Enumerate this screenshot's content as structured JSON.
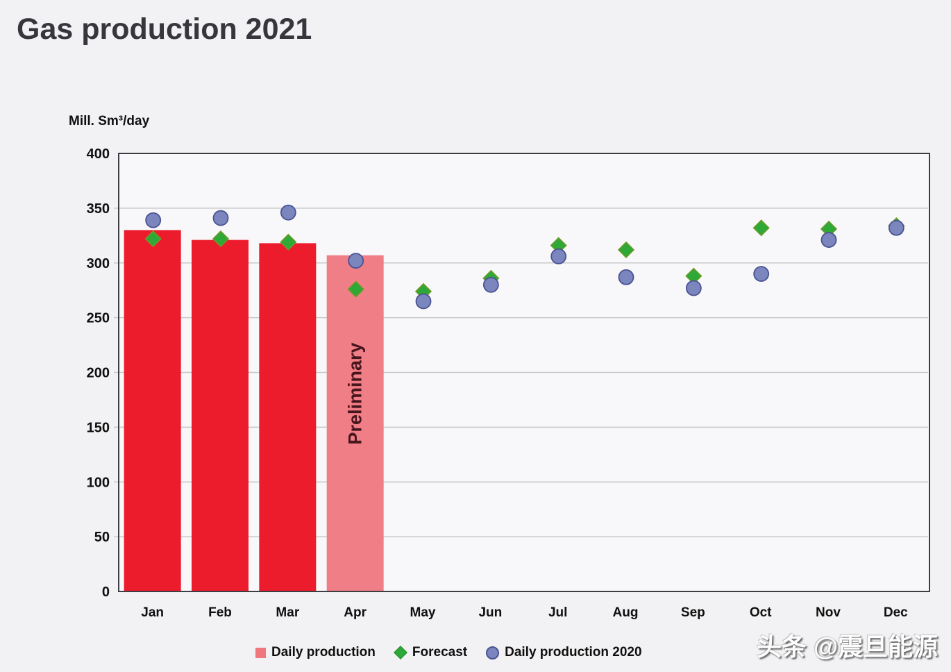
{
  "header": {
    "title": "Gas production 2021"
  },
  "watermark": "头条 @震旦能源",
  "legend": {
    "items": [
      {
        "label": "Daily production"
      },
      {
        "label": "Forecast"
      },
      {
        "label": "Daily production 2020"
      }
    ]
  },
  "chart_data": {
    "type": "bar",
    "title": "Gas production 2021",
    "xlabel": "",
    "ylabel": "Mill. Sm³/day",
    "ylim": [
      0,
      400
    ],
    "yticks": [
      0,
      50,
      100,
      150,
      200,
      250,
      300,
      350,
      400
    ],
    "grid": "horizontal",
    "legend_position": "bottom",
    "categories": [
      "Jan",
      "Feb",
      "Mar",
      "Apr",
      "May",
      "Jun",
      "Jul",
      "Aug",
      "Sep",
      "Oct",
      "Nov",
      "Dec"
    ],
    "series": [
      {
        "name": "Daily production",
        "type": "bar",
        "color": "#EC1C2D",
        "values": [
          330,
          321,
          318,
          307,
          null,
          null,
          null,
          null,
          null,
          null,
          null,
          null
        ]
      },
      {
        "name": "Forecast",
        "type": "scatter",
        "marker": "diamond",
        "color": "#2EA836",
        "values": [
          322,
          322,
          319,
          276,
          274,
          286,
          316,
          312,
          288,
          332,
          331,
          334
        ]
      },
      {
        "name": "Daily production 2020",
        "type": "scatter",
        "marker": "circle",
        "color": "#7B85BE",
        "values": [
          339,
          341,
          346,
          302,
          265,
          280,
          306,
          287,
          277,
          290,
          321,
          332
        ]
      }
    ],
    "annotations": [
      {
        "month": "Apr",
        "label": "Preliminary",
        "bar_color": "#F07E86"
      }
    ]
  }
}
